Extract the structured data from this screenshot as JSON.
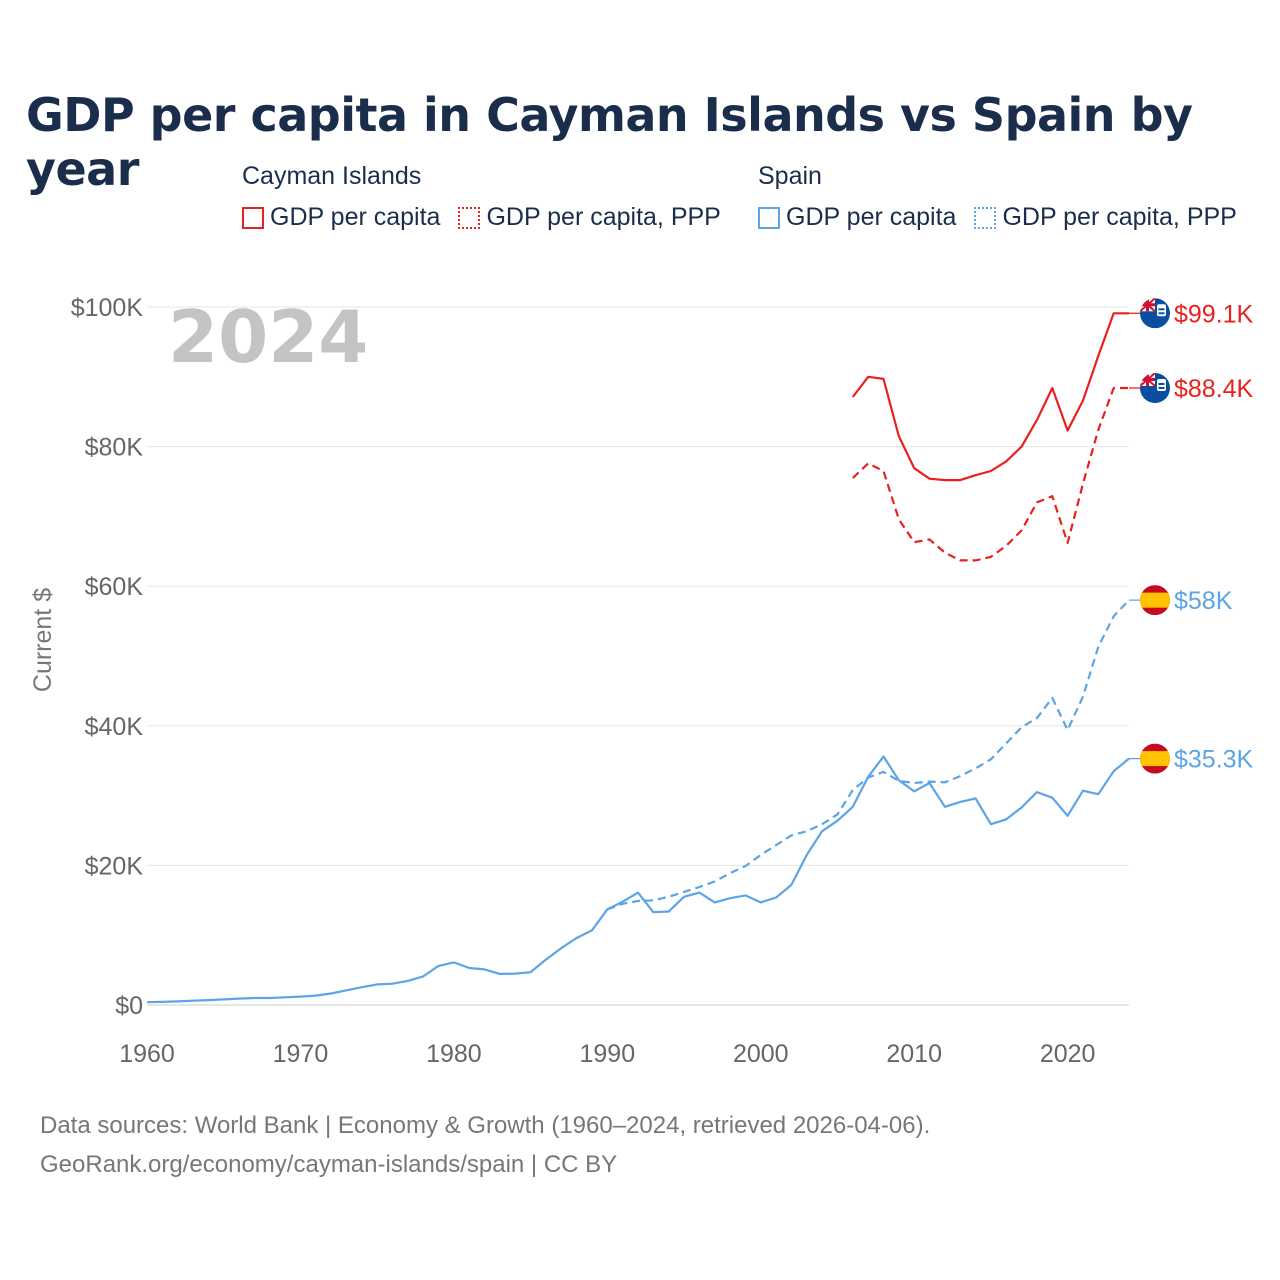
{
  "title": "GDP per capita in Cayman Islands vs Spain by year",
  "legend": {
    "groups": [
      {
        "name": "Cayman Islands",
        "color": "#e8211c",
        "items": [
          "GDP per capita",
          "GDP per capita, PPP"
        ]
      },
      {
        "name": "Spain",
        "color": "#5ba4e5",
        "items": [
          "GDP per capita",
          "GDP per capita, PPP"
        ]
      }
    ]
  },
  "footer": {
    "line1": "Data sources: World Bank | Economy & Growth (1960–2024, retrieved 2026-04-06).",
    "line2": "GeoRank.org/economy/cayman-islands/spain | CC BY"
  },
  "chart_data": {
    "type": "line",
    "year_label": "2024",
    "ylabel": "Current $",
    "xlabel": "",
    "xlim": [
      1960,
      2024
    ],
    "ylim": [
      0,
      100000
    ],
    "x_ticks": [
      1960,
      1970,
      1980,
      1990,
      2000,
      2010,
      2020
    ],
    "y_ticks": [
      0,
      20000,
      40000,
      60000,
      80000,
      100000
    ],
    "y_tick_labels": [
      "$0",
      "$20K",
      "$40K",
      "$60K",
      "$80K",
      "$100K"
    ],
    "grid": true,
    "series": [
      {
        "name": "Cayman Islands GDP per capita",
        "country": "Cayman Islands",
        "color": "#e8211c",
        "dash": "solid",
        "end_label": "$99.1K",
        "flag": "cayman-islands",
        "points": [
          [
            2006,
            87100
          ],
          [
            2007,
            90000
          ],
          [
            2008,
            89700
          ],
          [
            2009,
            81500
          ],
          [
            2010,
            76900
          ],
          [
            2011,
            75400
          ],
          [
            2012,
            75200
          ],
          [
            2013,
            75200
          ],
          [
            2014,
            75900
          ],
          [
            2015,
            76500
          ],
          [
            2016,
            77900
          ],
          [
            2017,
            80000
          ],
          [
            2018,
            83800
          ],
          [
            2019,
            88400
          ],
          [
            2020,
            82300
          ],
          [
            2021,
            86600
          ],
          [
            2022,
            93000
          ],
          [
            2023,
            99100
          ],
          [
            2024,
            99100
          ]
        ]
      },
      {
        "name": "Cayman Islands GDP per capita, PPP",
        "country": "Cayman Islands",
        "color": "#e8211c",
        "dash": "dashed",
        "end_label": "$88.4K",
        "flag": "cayman-islands",
        "points": [
          [
            2006,
            75500
          ],
          [
            2007,
            77600
          ],
          [
            2008,
            76500
          ],
          [
            2009,
            69600
          ],
          [
            2010,
            66300
          ],
          [
            2011,
            66700
          ],
          [
            2012,
            64800
          ],
          [
            2013,
            63700
          ],
          [
            2014,
            63700
          ],
          [
            2015,
            64200
          ],
          [
            2016,
            65800
          ],
          [
            2017,
            68000
          ],
          [
            2018,
            72000
          ],
          [
            2019,
            72900
          ],
          [
            2020,
            66200
          ],
          [
            2021,
            74700
          ],
          [
            2022,
            82400
          ],
          [
            2023,
            88400
          ],
          [
            2024,
            88400
          ]
        ]
      },
      {
        "name": "Spain GDP per capita",
        "country": "Spain",
        "color": "#5ba4e5",
        "dash": "solid",
        "end_label": "$35.3K",
        "flag": "spain",
        "points": [
          [
            1960,
            400
          ],
          [
            1961,
            450
          ],
          [
            1962,
            520
          ],
          [
            1963,
            620
          ],
          [
            1964,
            700
          ],
          [
            1965,
            800
          ],
          [
            1966,
            920
          ],
          [
            1967,
            1000
          ],
          [
            1968,
            1000
          ],
          [
            1969,
            1100
          ],
          [
            1970,
            1200
          ],
          [
            1971,
            1350
          ],
          [
            1972,
            1650
          ],
          [
            1973,
            2100
          ],
          [
            1974,
            2550
          ],
          [
            1975,
            2950
          ],
          [
            1976,
            3050
          ],
          [
            1977,
            3450
          ],
          [
            1978,
            4100
          ],
          [
            1979,
            5600
          ],
          [
            1980,
            6100
          ],
          [
            1981,
            5300
          ],
          [
            1982,
            5100
          ],
          [
            1983,
            4450
          ],
          [
            1984,
            4500
          ],
          [
            1985,
            4700
          ],
          [
            1986,
            6500
          ],
          [
            1987,
            8150
          ],
          [
            1988,
            9600
          ],
          [
            1989,
            10700
          ],
          [
            1990,
            13700
          ],
          [
            1991,
            14800
          ],
          [
            1992,
            16100
          ],
          [
            1993,
            13300
          ],
          [
            1994,
            13400
          ],
          [
            1995,
            15500
          ],
          [
            1996,
            16100
          ],
          [
            1997,
            14700
          ],
          [
            1998,
            15300
          ],
          [
            1999,
            15700
          ],
          [
            2000,
            14700
          ],
          [
            2001,
            15400
          ],
          [
            2002,
            17200
          ],
          [
            2003,
            21500
          ],
          [
            2004,
            24900
          ],
          [
            2005,
            26400
          ],
          [
            2006,
            28400
          ],
          [
            2007,
            32700
          ],
          [
            2008,
            35600
          ],
          [
            2009,
            32200
          ],
          [
            2010,
            30600
          ],
          [
            2011,
            31800
          ],
          [
            2012,
            28400
          ],
          [
            2013,
            29100
          ],
          [
            2014,
            29600
          ],
          [
            2015,
            25900
          ],
          [
            2016,
            26600
          ],
          [
            2017,
            28300
          ],
          [
            2018,
            30500
          ],
          [
            2019,
            29700
          ],
          [
            2020,
            27100
          ],
          [
            2021,
            30700
          ],
          [
            2022,
            30200
          ],
          [
            2023,
            33500
          ],
          [
            2024,
            35300
          ]
        ]
      },
      {
        "name": "Spain GDP per capita, PPP",
        "country": "Spain",
        "color": "#5ba4e5",
        "dash": "dashed",
        "end_label": "$58K",
        "flag": "spain",
        "points": [
          [
            1990,
            13700
          ],
          [
            1991,
            14500
          ],
          [
            1992,
            14900
          ],
          [
            1993,
            15000
          ],
          [
            1994,
            15500
          ],
          [
            1995,
            16200
          ],
          [
            1996,
            16900
          ],
          [
            1997,
            17700
          ],
          [
            1998,
            18900
          ],
          [
            1999,
            19900
          ],
          [
            2000,
            21500
          ],
          [
            2001,
            22900
          ],
          [
            2002,
            24300
          ],
          [
            2003,
            24900
          ],
          [
            2004,
            25900
          ],
          [
            2005,
            27300
          ],
          [
            2006,
            30800
          ],
          [
            2007,
            32600
          ],
          [
            2008,
            33400
          ],
          [
            2009,
            32100
          ],
          [
            2010,
            31800
          ],
          [
            2011,
            32000
          ],
          [
            2012,
            31900
          ],
          [
            2013,
            32800
          ],
          [
            2014,
            33900
          ],
          [
            2015,
            35200
          ],
          [
            2016,
            37500
          ],
          [
            2017,
            39800
          ],
          [
            2018,
            41100
          ],
          [
            2019,
            44000
          ],
          [
            2020,
            39400
          ],
          [
            2021,
            44200
          ],
          [
            2022,
            51300
          ],
          [
            2023,
            55700
          ],
          [
            2024,
            58000
          ]
        ]
      }
    ]
  }
}
